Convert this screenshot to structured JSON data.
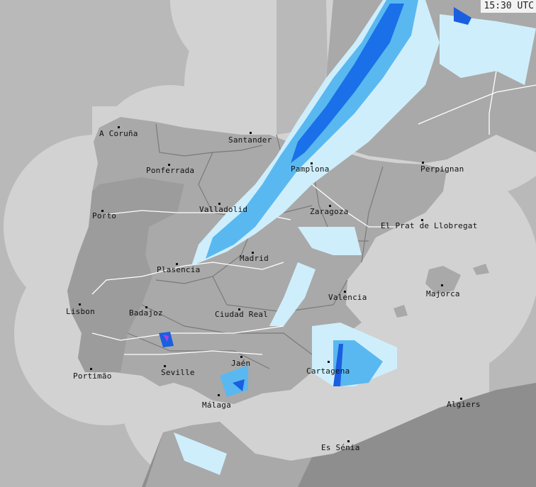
{
  "timestamp": "15:30 UTC",
  "colors": {
    "sea_outside": "#b9b9b9",
    "sea_covered": "#d2d2d2",
    "land_covered": "#a9a9a9",
    "land_outside": "#9c9c9c",
    "africa": "#8e8e8e",
    "rain_light": "#cfeefc",
    "rain_mid": "#5ab8f0",
    "rain_heavy": "#1a5fe0",
    "rain_extreme": "#b040e0"
  },
  "cities": [
    {
      "name": "A Coruña"
    },
    {
      "name": "Santander"
    },
    {
      "name": "Ponferrada"
    },
    {
      "name": "Pamplona"
    },
    {
      "name": "Perpignan"
    },
    {
      "name": "Valladolid"
    },
    {
      "name": "Zaragoza"
    },
    {
      "name": "Porto"
    },
    {
      "name": "El Prat de Llobregat"
    },
    {
      "name": "Madrid"
    },
    {
      "name": "Plasencia"
    },
    {
      "name": "Majorca"
    },
    {
      "name": "Valencia"
    },
    {
      "name": "Lisbon"
    },
    {
      "name": "Badajoz"
    },
    {
      "name": "Ciudad Real"
    },
    {
      "name": "Jaén"
    },
    {
      "name": "Seville"
    },
    {
      "name": "Portimão"
    },
    {
      "name": "Cartagena"
    },
    {
      "name": "Málaga"
    },
    {
      "name": "Algiers"
    },
    {
      "name": "Es Sénia"
    }
  ]
}
